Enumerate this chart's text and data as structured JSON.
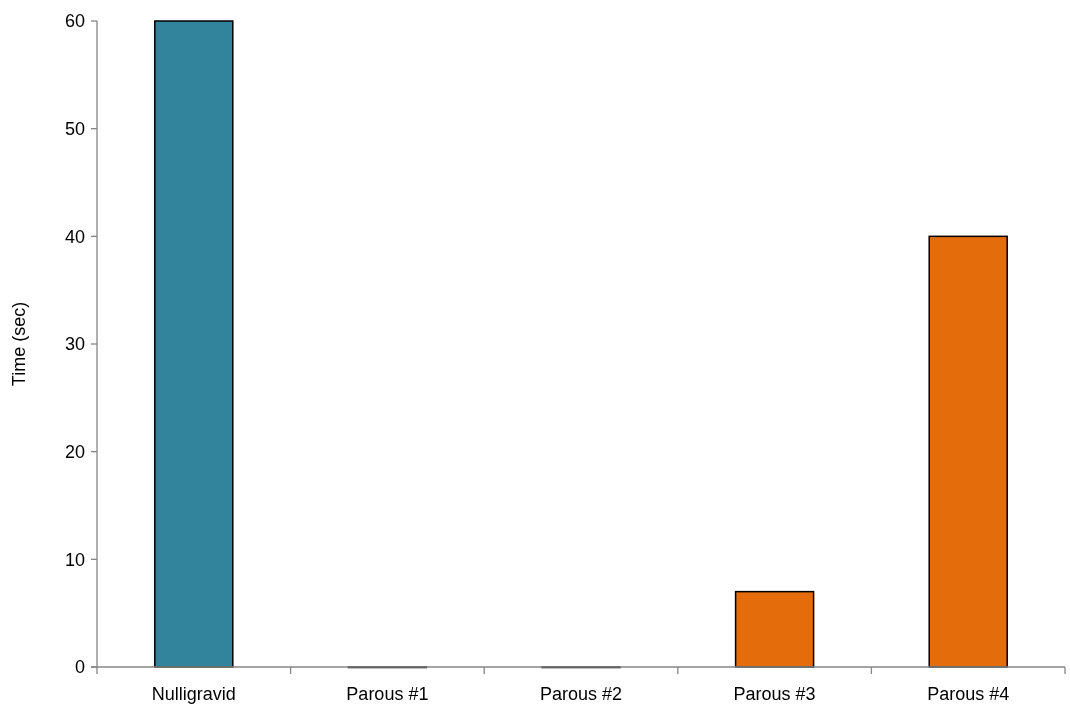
{
  "chart_data": {
    "type": "bar",
    "ylabel": "Time (sec)",
    "categories": [
      "Nulligravid",
      "Parous #1",
      "Parous #2",
      "Parous #3",
      "Parous #4"
    ],
    "values": [
      60,
      0,
      0,
      7,
      40
    ],
    "colors": [
      "#31849b",
      "#e46c0a",
      "#e46c0a",
      "#e46c0a",
      "#e46c0a"
    ],
    "ylim": [
      0,
      60
    ],
    "yticks": [
      0,
      10,
      20,
      30,
      40,
      50,
      60
    ],
    "grid": false
  }
}
